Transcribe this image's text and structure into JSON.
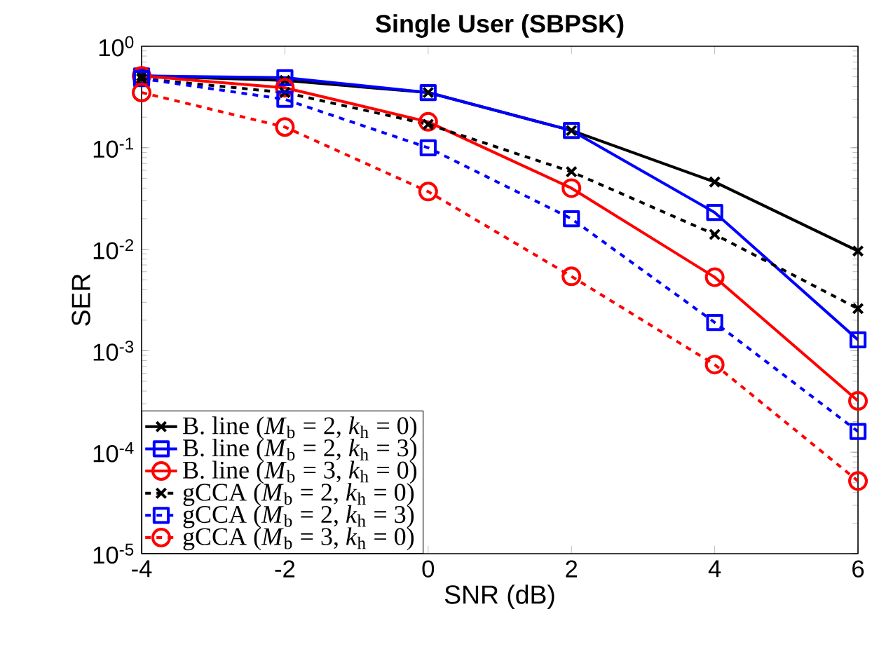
{
  "chart_data": {
    "type": "line",
    "title": "Single User (SBPSK)",
    "xlabel": "SNR (dB)",
    "ylabel": "SER",
    "x": [
      -4,
      -2,
      0,
      2,
      4,
      6
    ],
    "series": [
      {
        "name": "B. line (*M*$_{b}$ = 2, *k*$_{h}$ = 0)",
        "color": "#000000",
        "marker": "cross",
        "line_style": "solid",
        "values": [
          0.51,
          0.46,
          0.35,
          0.148,
          0.046,
          0.0096
        ]
      },
      {
        "name": "B. line (*M*$_{b}$ = 2, *k*$_{h}$ = 3)",
        "color": "#0000ff",
        "marker": "square",
        "line_style": "solid",
        "values": [
          0.51,
          0.49,
          0.35,
          0.148,
          0.023,
          0.00128
        ]
      },
      {
        "name": "B. line (*M*$_{b}$ = 3, *k*$_{h}$ = 0)",
        "color": "#ff0000",
        "marker": "circle",
        "line_style": "solid",
        "values": [
          0.51,
          0.39,
          0.18,
          0.04,
          0.0053,
          0.00032
        ]
      },
      {
        "name": "gCCA (*M*$_{b}$ = 2, *k*$_{h}$ = 0)",
        "color": "#000000",
        "marker": "cross",
        "line_style": "dashed",
        "values": [
          0.48,
          0.35,
          0.17,
          0.058,
          0.014,
          0.0026
        ]
      },
      {
        "name": "gCCA (*M*$_{b}$ = 2, *k*$_{h}$ = 3)",
        "color": "#0000ff",
        "marker": "square",
        "line_style": "dashed",
        "values": [
          0.48,
          0.3,
          0.1,
          0.02,
          0.0019,
          0.00016
        ]
      },
      {
        "name": "gCCA (*M*$_{b}$ = 3, *k*$_{h}$ = 0)",
        "color": "#ff0000",
        "marker": "circle",
        "line_style": "dashed",
        "values": [
          0.35,
          0.16,
          0.037,
          0.0054,
          0.00073,
          5.2e-05
        ]
      }
    ],
    "xlim": [
      -4,
      6
    ],
    "xticks": [
      -4,
      -2,
      0,
      2,
      4,
      6
    ],
    "ylim": [
      1e-05,
      1
    ],
    "yticks": [
      {
        "value": 1e-05,
        "label": "10$^{-5}$"
      },
      {
        "value": 0.0001,
        "label": "10$^{-4}$"
      },
      {
        "value": 0.001,
        "label": "10$^{-3}$"
      },
      {
        "value": 0.01,
        "label": "10$^{-2}$"
      },
      {
        "value": 0.1,
        "label": "10$^{-1}$"
      },
      {
        "value": 1,
        "label": "10$^{0}$"
      }
    ],
    "log": "y",
    "grid": false,
    "legend": "bottom left"
  }
}
